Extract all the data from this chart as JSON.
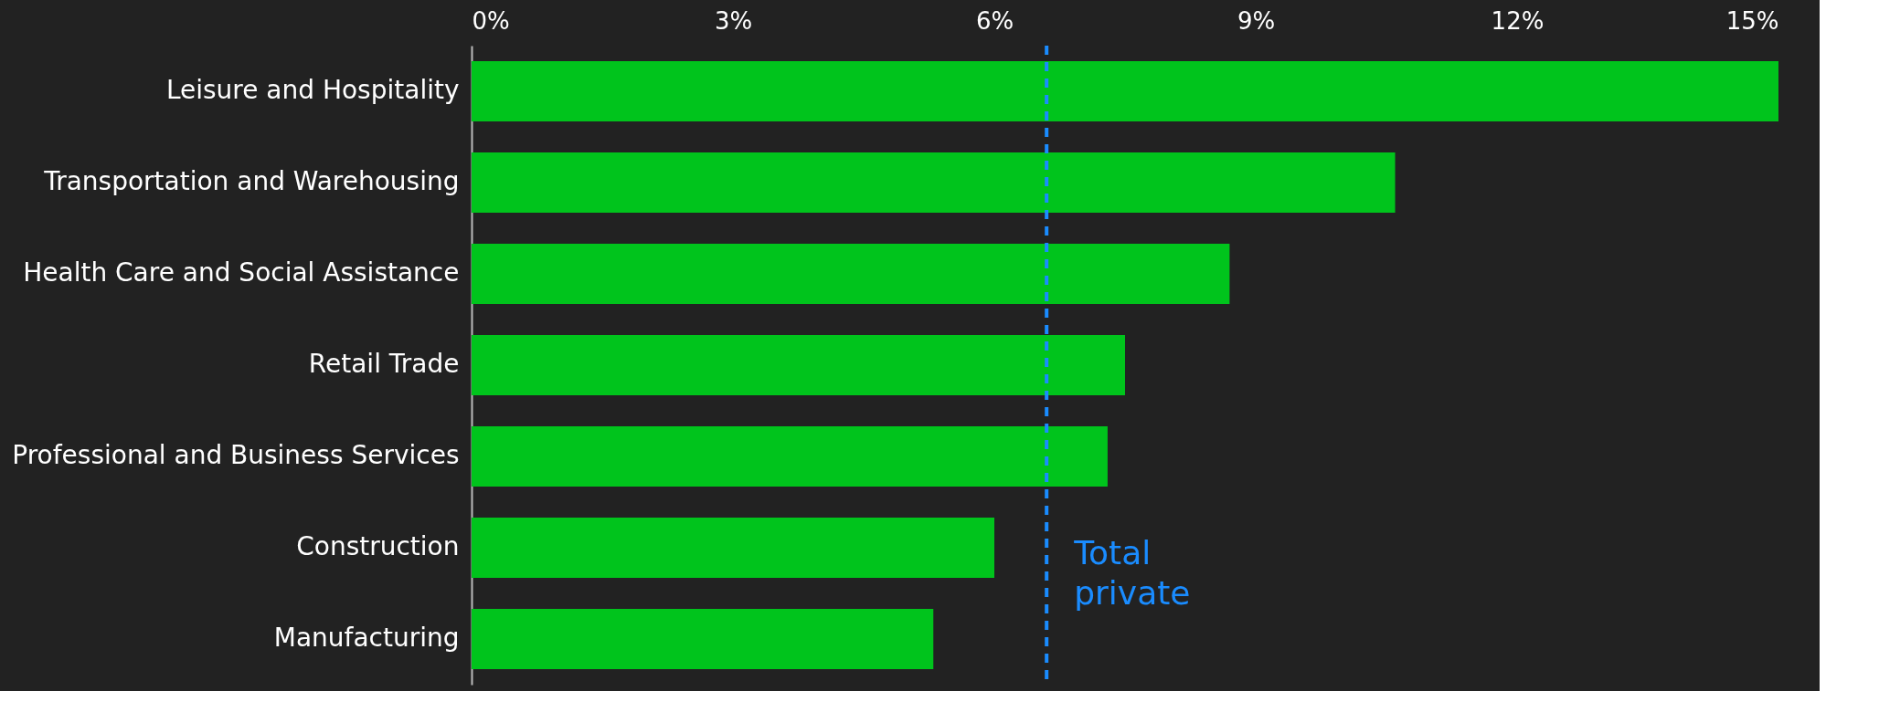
{
  "chart_data": {
    "type": "bar",
    "orientation": "horizontal",
    "categories": [
      "Leisure and Hospitality",
      "Transportation and Warehousing",
      "Health Care and Social Assistance",
      "Retail Trade",
      "Professional and Business Services",
      "Construction",
      "Manufacturing"
    ],
    "values": [
      15.0,
      10.6,
      8.7,
      7.5,
      7.3,
      6.0,
      5.3
    ],
    "color": "#00c41c",
    "xlim": [
      0,
      15
    ],
    "xticks": [
      {
        "value": 0,
        "label": "0%"
      },
      {
        "value": 3,
        "label": "3%"
      },
      {
        "value": 6,
        "label": "6%"
      },
      {
        "value": 9,
        "label": "9%"
      },
      {
        "value": 12,
        "label": "12%"
      },
      {
        "value": 15,
        "label": "15%"
      }
    ],
    "ref_lines": [
      {
        "axis": "x",
        "value": 6.6,
        "label": "Total private",
        "color": "#1a8cff",
        "line_style": "dashed"
      }
    ],
    "grid": false
  }
}
